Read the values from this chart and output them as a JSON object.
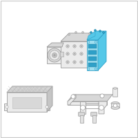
{
  "bg_color": "#ffffff",
  "border_color": "#c8c8c8",
  "highlight_color": "#55c8e8",
  "highlight_dark": "#2fa0c8",
  "highlight_light": "#a0dff0",
  "outline_color": "#999999",
  "outline_light": "#bbbbbb",
  "face_light": "#ebebeb",
  "face_mid": "#d8d8d8",
  "face_dark": "#c5c5c5"
}
